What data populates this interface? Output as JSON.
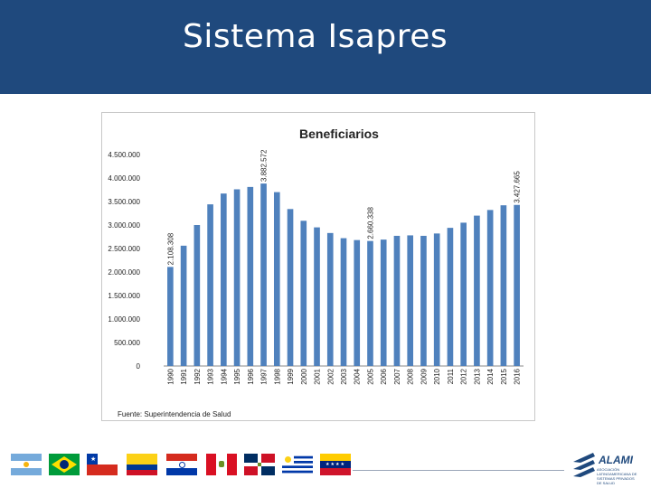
{
  "slide": {
    "title": "Sistema Isapres",
    "source": "Fuente: Superintendencia de Salud",
    "logo_name": "ALAMI",
    "logo_subtitle": "ASOCIACIÓN LATINOAMERICANA DE SISTEMAS PRIVADOS DE SALUD"
  },
  "colors": {
    "header": "#1f497d",
    "bar": "#4f81bd"
  },
  "flags": [
    "argentina-flag",
    "brazil-flag",
    "chile-flag",
    "colombia-flag",
    "paraguay-flag",
    "peru-flag",
    "dominican-republic-flag",
    "uruguay-flag",
    "venezuela-flag"
  ],
  "chart_data": {
    "type": "bar",
    "title": "Beneficiarios",
    "categories": [
      "1990",
      "1991",
      "1992",
      "1993",
      "1994",
      "1995",
      "1996",
      "1997",
      "1998",
      "1999",
      "2000",
      "2001",
      "2002",
      "2003",
      "2004",
      "2005",
      "2006",
      "2007",
      "2008",
      "2009",
      "2010",
      "2011",
      "2012",
      "2013",
      "2014",
      "2015",
      "2016"
    ],
    "values": [
      2108308,
      2560000,
      3000000,
      3440000,
      3670000,
      3760000,
      3810000,
      3882572,
      3700000,
      3340000,
      3090000,
      2950000,
      2830000,
      2720000,
      2680000,
      2660338,
      2690000,
      2770000,
      2780000,
      2770000,
      2820000,
      2940000,
      3050000,
      3200000,
      3320000,
      3420000,
      3427665
    ],
    "data_labels": [
      {
        "index": 0,
        "text": "2.108.308"
      },
      {
        "index": 7,
        "text": "3.882.572"
      },
      {
        "index": 15,
        "text": "2.660.338"
      },
      {
        "index": 26,
        "text": "3.427.665"
      }
    ],
    "ylim": [
      0,
      4500000
    ],
    "yticks": [
      0,
      500000,
      1000000,
      1500000,
      2000000,
      2500000,
      3000000,
      3500000,
      4000000,
      4500000
    ],
    "ytick_labels": [
      "0",
      "500.000",
      "1.000.000",
      "1.500.000",
      "2.000.000",
      "2.500.000",
      "3.000.000",
      "3.500.000",
      "4.000.000",
      "4.500.000"
    ],
    "grid": false,
    "legend": "none"
  }
}
